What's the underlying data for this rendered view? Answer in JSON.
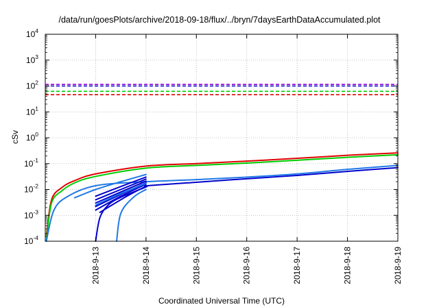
{
  "chart_data": {
    "type": "line",
    "title": "/data/run/goesPlots/archive/2018-09-18/flux/../bryn/7daysEarthDataAccumulated.plot",
    "xlabel": "Coordinated Universal Time (UTC)",
    "ylabel": "cSv",
    "x_scale": "time",
    "y_scale": "log",
    "xlim": [
      "2018-09-12 00:00",
      "2018-09-19 00:00"
    ],
    "ylim": [
      0.0001,
      10000
    ],
    "grid": true,
    "x_ticks": [
      "2018-9-13",
      "2018-9-14",
      "2018-9-15",
      "2018-9-16",
      "2018-9-17",
      "2018-9-18",
      "2018-9-19"
    ],
    "y_ticks": [
      {
        "value": 0.0001,
        "base": "10",
        "exp": "-4"
      },
      {
        "value": 0.001,
        "base": "10",
        "exp": "-3"
      },
      {
        "value": 0.01,
        "base": "10",
        "exp": "-2"
      },
      {
        "value": 0.1,
        "base": "10",
        "exp": "-1"
      },
      {
        "value": 1,
        "base": "10",
        "exp": "0"
      },
      {
        "value": 10,
        "base": "10",
        "exp": "1"
      },
      {
        "value": 100,
        "base": "10",
        "exp": "2"
      },
      {
        "value": 1000,
        "base": "10",
        "exp": "3"
      },
      {
        "value": 10000,
        "base": "10",
        "exp": "4"
      }
    ],
    "thresholds": [
      {
        "value": 115,
        "color": "#9400d3",
        "style": "dashed"
      },
      {
        "value": 100,
        "color": "#0000cd",
        "style": "dashed"
      },
      {
        "value": 62,
        "color": "#00cc00",
        "style": "dashed"
      },
      {
        "value": 46,
        "color": "#e00000",
        "style": "dashed"
      }
    ],
    "series": [
      {
        "color": "#e00000",
        "points": [
          [
            "2018-09-12 00:30",
            0.00015
          ],
          [
            "2018-09-12 03:00",
            0.004
          ],
          [
            "2018-09-12 08:00",
            0.012
          ],
          [
            "2018-09-12 14:00",
            0.022
          ],
          [
            "2018-09-13 00:00",
            0.04
          ],
          [
            "2018-09-14 00:00",
            0.08
          ],
          [
            "2018-09-15 00:00",
            0.1
          ],
          [
            "2018-09-16 00:00",
            0.125
          ],
          [
            "2018-09-17 00:00",
            0.16
          ],
          [
            "2018-09-18 00:00",
            0.21
          ],
          [
            "2018-09-19 00:00",
            0.26
          ]
        ]
      },
      {
        "color": "#00cc00",
        "points": [
          [
            "2018-09-12 00:30",
            0.0001
          ],
          [
            "2018-09-12 03:00",
            0.003
          ],
          [
            "2018-09-12 08:00",
            0.009
          ],
          [
            "2018-09-12 14:00",
            0.018
          ],
          [
            "2018-09-13 00:00",
            0.032
          ],
          [
            "2018-09-14 00:00",
            0.067
          ],
          [
            "2018-09-15 00:00",
            0.085
          ],
          [
            "2018-09-16 00:00",
            0.105
          ],
          [
            "2018-09-17 00:00",
            0.135
          ],
          [
            "2018-09-18 00:00",
            0.175
          ],
          [
            "2018-09-19 00:00",
            0.22
          ]
        ]
      },
      {
        "color": "#1e78e6",
        "points": [
          [
            "2018-09-12 00:30",
            0.0001
          ],
          [
            "2018-09-12 04:00",
            0.0015
          ],
          [
            "2018-09-12 10:00",
            0.005
          ],
          [
            "2018-09-13 00:00",
            0.014
          ],
          [
            "2018-09-14 00:00",
            0.02
          ],
          [
            "2018-09-15 00:00",
            0.024
          ],
          [
            "2018-09-16 00:00",
            0.03
          ],
          [
            "2018-09-17 00:00",
            0.04
          ],
          [
            "2018-09-18 00:00",
            0.06
          ],
          [
            "2018-09-19 00:00",
            0.085
          ]
        ]
      },
      {
        "color": "#0000cd",
        "points": [
          [
            "2018-09-13 00:00",
            0.0001
          ],
          [
            "2018-09-13 02:00",
            0.0008
          ],
          [
            "2018-09-13 06:00",
            0.0025
          ],
          [
            "2018-09-13 12:00",
            0.005
          ],
          [
            "2018-09-14 00:00",
            0.0125
          ],
          [
            "2018-09-14 01:00",
            0.014
          ],
          [
            "2018-09-15 00:00",
            0.019
          ],
          [
            "2018-09-16 00:00",
            0.026
          ],
          [
            "2018-09-17 00:00",
            0.035
          ],
          [
            "2018-09-18 00:00",
            0.05
          ],
          [
            "2018-09-19 00:00",
            0.07
          ]
        ]
      },
      {
        "color": "#1e78e6",
        "points": [
          [
            "2018-09-13 10:00",
            0.0001
          ],
          [
            "2018-09-13 12:00",
            0.0012
          ],
          [
            "2018-09-13 18:00",
            0.005
          ],
          [
            "2018-09-14 00:00",
            0.01
          ]
        ]
      },
      {
        "color": "#1e78e6",
        "points": [
          [
            "2018-09-12 14:00",
            0.0048
          ],
          [
            "2018-09-13 00:00",
            0.01
          ],
          [
            "2018-09-13 12:00",
            0.02
          ],
          [
            "2018-09-14 00:00",
            0.038
          ]
        ]
      },
      {
        "color": "#0000cd",
        "points": [
          [
            "2018-09-13 00:00",
            0.0055
          ],
          [
            "2018-09-13 12:00",
            0.013
          ],
          [
            "2018-09-14 00:00",
            0.03
          ]
        ]
      },
      {
        "color": "#0000cd",
        "points": [
          [
            "2018-09-13 00:00",
            0.004
          ],
          [
            "2018-09-13 12:00",
            0.01
          ],
          [
            "2018-09-14 00:00",
            0.025
          ]
        ]
      },
      {
        "color": "#0000cd",
        "points": [
          [
            "2018-09-13 00:00",
            0.003
          ],
          [
            "2018-09-13 12:00",
            0.008
          ],
          [
            "2018-09-14 00:00",
            0.021
          ]
        ]
      },
      {
        "color": "#0000cd",
        "points": [
          [
            "2018-09-13 00:00",
            0.0022
          ],
          [
            "2018-09-13 12:00",
            0.0065
          ],
          [
            "2018-09-14 00:00",
            0.018
          ]
        ]
      },
      {
        "color": "#0000cd",
        "points": [
          [
            "2018-09-13 00:00",
            0.0016
          ],
          [
            "2018-09-13 12:00",
            0.0055
          ],
          [
            "2018-09-14 00:00",
            0.016
          ]
        ]
      },
      {
        "color": "#0000cd",
        "points": [
          [
            "2018-09-13 02:00",
            0.0013
          ],
          [
            "2018-09-13 14:00",
            0.005
          ],
          [
            "2018-09-14 00:00",
            0.0135
          ]
        ]
      },
      {
        "color": "#1e78e6",
        "points": [
          [
            "2018-09-13 00:00",
            0.0025
          ],
          [
            "2018-09-13 12:00",
            0.007
          ],
          [
            "2018-09-14 00:00",
            0.017
          ]
        ]
      }
    ]
  }
}
